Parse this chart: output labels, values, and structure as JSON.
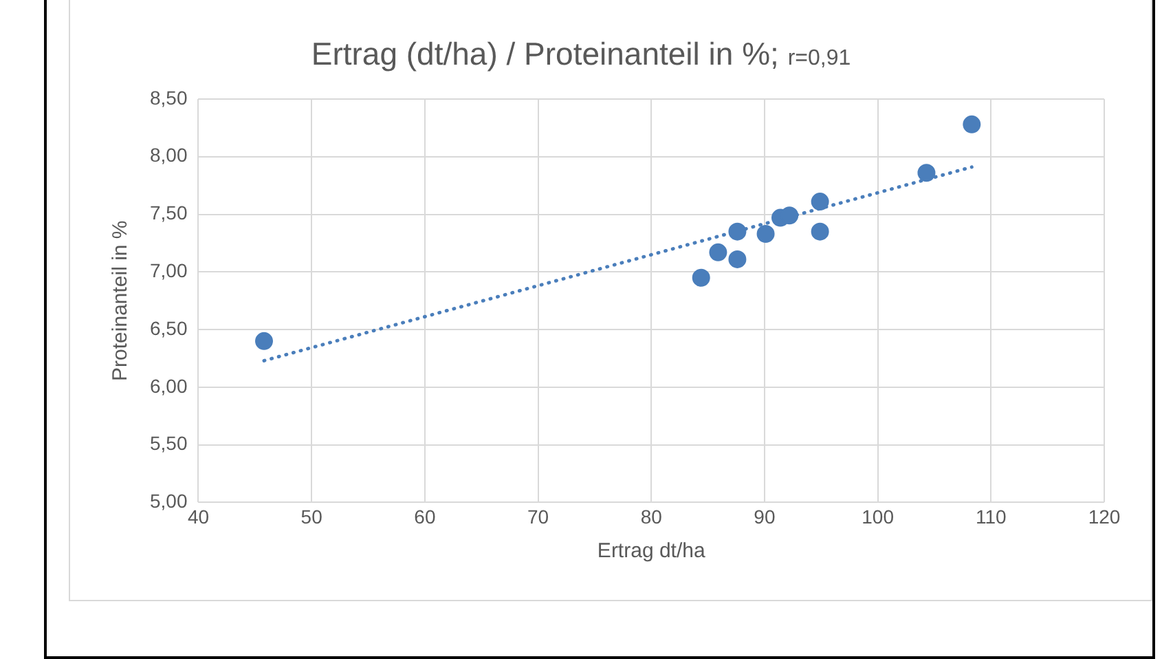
{
  "chart_data": {
    "type": "scatter",
    "title": "Ertrag (dt/ha) / Proteinanteil in %;",
    "annotations": [
      "r=0,91"
    ],
    "xlabel": "Ertrag dt/ha",
    "ylabel": "Proteinanteil in %",
    "xlim": [
      40,
      120
    ],
    "xticks": [
      40,
      50,
      60,
      70,
      80,
      90,
      100,
      110,
      120
    ],
    "ylim": [
      5,
      8.5
    ],
    "yticks": [
      {
        "value": 5,
        "label": "5,00"
      },
      {
        "value": 5.5,
        "label": "5,50"
      },
      {
        "value": 6,
        "label": "6,00"
      },
      {
        "value": 6.5,
        "label": "6,50"
      },
      {
        "value": 7,
        "label": "7,00"
      },
      {
        "value": 7.5,
        "label": "7,50"
      },
      {
        "value": 8,
        "label": "8,00"
      },
      {
        "value": 8.5,
        "label": "8,50"
      }
    ],
    "grid": true,
    "legend": false,
    "series": [
      {
        "type": "scatter",
        "color": "#4a7ebb",
        "marker": "circle",
        "x": [
          45.8,
          84.4,
          85.9,
          87.6,
          87.6,
          90.1,
          91.4,
          92.2,
          94.9,
          94.9,
          104.3,
          108.3
        ],
        "values": [
          6.4,
          6.95,
          7.17,
          7.11,
          7.35,
          7.33,
          7.47,
          7.49,
          7.61,
          7.35,
          7.86,
          8.28
        ]
      },
      {
        "type": "line",
        "color": "#4a7ebb",
        "marker": "none",
        "line_style": "dotted",
        "x": [
          45.8,
          108.3
        ],
        "values": [
          6.23,
          7.91
        ]
      }
    ]
  }
}
